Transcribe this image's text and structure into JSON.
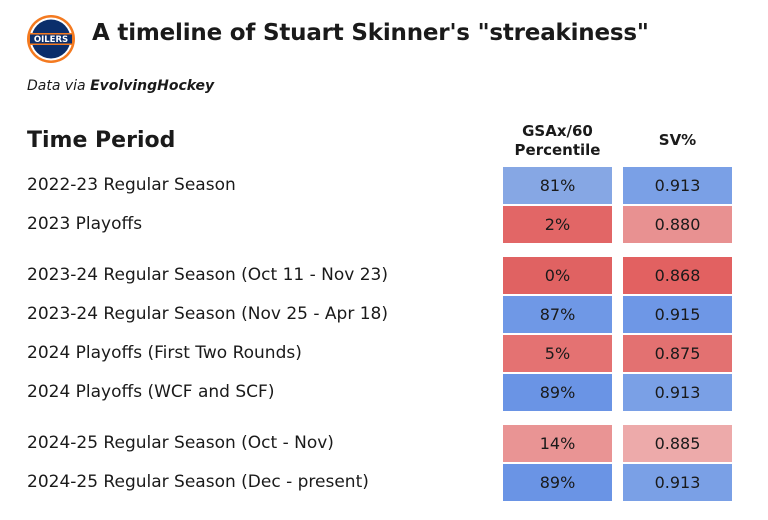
{
  "header": {
    "title": "A timeline of Stuart Skinner's \"streakiness\"",
    "subtitle_prefix": "Data via ",
    "subtitle_source": "EvolvingHockey",
    "logo_text": "OILERS"
  },
  "chart_data": {
    "type": "table",
    "title": "A timeline of Stuart Skinner's \"streakiness\"",
    "row_header": "Time Period",
    "columns": [
      "GSAx/60 Percentile",
      "SV%"
    ],
    "rows": [
      {
        "period": "2022-23 Regular Season",
        "gsax_pct": "81%",
        "sv": "0.913",
        "gsax_color": "#86a7e4",
        "sv_color": "#7aa0e6"
      },
      {
        "period": "2023 Playoffs",
        "gsax_pct": "2%",
        "sv": "0.880",
        "gsax_color": "#e26666",
        "sv_color": "#e89191"
      },
      {
        "period": "2023-24 Regular Season (Oct 11 - Nov 23)",
        "gsax_pct": "0%",
        "sv": "0.868",
        "gsax_color": "#e06262",
        "sv_color": "#e26161"
      },
      {
        "period": "2023-24 Regular Season (Nov 25 - Apr 18)",
        "gsax_pct": "87%",
        "sv": "0.915",
        "gsax_color": "#6f98e6",
        "sv_color": "#6e97e6"
      },
      {
        "period": "2024 Playoffs (First Two Rounds)",
        "gsax_pct": "5%",
        "sv": "0.875",
        "gsax_color": "#e47272",
        "sv_color": "#e37171"
      },
      {
        "period": "2024 Playoffs (WCF and SCF)",
        "gsax_pct": "89%",
        "sv": "0.913",
        "gsax_color": "#6a94e5",
        "sv_color": "#7aa0e6"
      },
      {
        "period": "2024-25 Regular Season (Oct - Nov)",
        "gsax_pct": "14%",
        "sv": "0.885",
        "gsax_color": "#e99494",
        "sv_color": "#edaaaa"
      },
      {
        "period": "2024-25 Regular Season (Dec - present)",
        "gsax_pct": "89%",
        "sv": "0.913",
        "gsax_color": "#6a94e5",
        "sv_color": "#7aa0e6"
      }
    ]
  }
}
